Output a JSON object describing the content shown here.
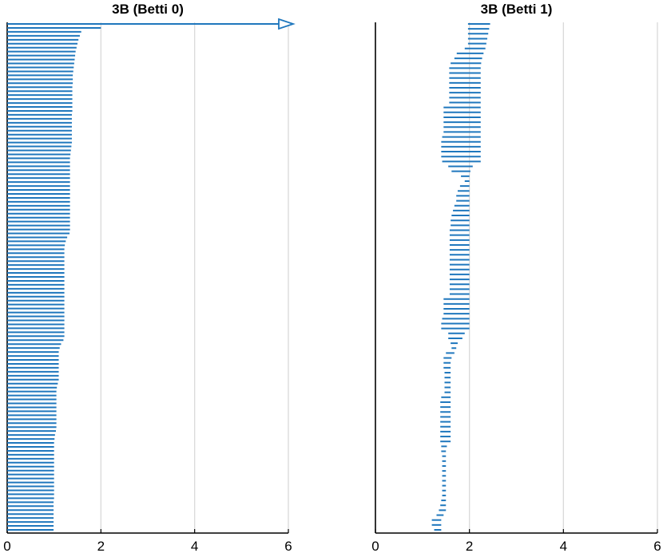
{
  "chart_data": [
    {
      "type": "barcode",
      "title": "3B (Betti 0)",
      "xlim": [
        0,
        6
      ],
      "xticks": [
        "0",
        "2",
        "4",
        "6"
      ],
      "grid": "x",
      "color": "#1f77bd",
      "infinite_bar": {
        "birth": 0,
        "arrow": true
      },
      "bars": [
        [
          0,
          2.0
        ],
        [
          0,
          1.58
        ],
        [
          0,
          1.55
        ],
        [
          0,
          1.52
        ],
        [
          0,
          1.5
        ],
        [
          0,
          1.48
        ],
        [
          0,
          1.46
        ],
        [
          0,
          1.45
        ],
        [
          0,
          1.44
        ],
        [
          0,
          1.43
        ],
        [
          0,
          1.42
        ],
        [
          0,
          1.41
        ],
        [
          0,
          1.4
        ],
        [
          0,
          1.4
        ],
        [
          0,
          1.4
        ],
        [
          0,
          1.39
        ],
        [
          0,
          1.39
        ],
        [
          0,
          1.39
        ],
        [
          0,
          1.39
        ],
        [
          0,
          1.39
        ],
        [
          0,
          1.39
        ],
        [
          0,
          1.39
        ],
        [
          0,
          1.38
        ],
        [
          0,
          1.38
        ],
        [
          0,
          1.38
        ],
        [
          0,
          1.38
        ],
        [
          0,
          1.38
        ],
        [
          0,
          1.38
        ],
        [
          0,
          1.38
        ],
        [
          0,
          1.38
        ],
        [
          0,
          1.37
        ],
        [
          0,
          1.36
        ],
        [
          0,
          1.35
        ],
        [
          0,
          1.34
        ],
        [
          0,
          1.34
        ],
        [
          0,
          1.34
        ],
        [
          0,
          1.34
        ],
        [
          0,
          1.34
        ],
        [
          0,
          1.34
        ],
        [
          0,
          1.34
        ],
        [
          0,
          1.34
        ],
        [
          0,
          1.34
        ],
        [
          0,
          1.34
        ],
        [
          0,
          1.34
        ],
        [
          0,
          1.34
        ],
        [
          0,
          1.34
        ],
        [
          0,
          1.34
        ],
        [
          0,
          1.34
        ],
        [
          0,
          1.34
        ],
        [
          0,
          1.34
        ],
        [
          0,
          1.34
        ],
        [
          0,
          1.34
        ],
        [
          0,
          1.33
        ],
        [
          0,
          1.28
        ],
        [
          0,
          1.25
        ],
        [
          0,
          1.23
        ],
        [
          0,
          1.22
        ],
        [
          0,
          1.22
        ],
        [
          0,
          1.22
        ],
        [
          0,
          1.22
        ],
        [
          0,
          1.22
        ],
        [
          0,
          1.22
        ],
        [
          0,
          1.22
        ],
        [
          0,
          1.22
        ],
        [
          0,
          1.22
        ],
        [
          0,
          1.22
        ],
        [
          0,
          1.22
        ],
        [
          0,
          1.22
        ],
        [
          0,
          1.22
        ],
        [
          0,
          1.22
        ],
        [
          0,
          1.22
        ],
        [
          0,
          1.22
        ],
        [
          0,
          1.22
        ],
        [
          0,
          1.22
        ],
        [
          0,
          1.22
        ],
        [
          0,
          1.22
        ],
        [
          0,
          1.22
        ],
        [
          0,
          1.22
        ],
        [
          0,
          1.22
        ],
        [
          0,
          1.2
        ],
        [
          0,
          1.15
        ],
        [
          0,
          1.12
        ],
        [
          0,
          1.1
        ],
        [
          0,
          1.1
        ],
        [
          0,
          1.1
        ],
        [
          0,
          1.1
        ],
        [
          0,
          1.1
        ],
        [
          0,
          1.1
        ],
        [
          0,
          1.1
        ],
        [
          0,
          1.1
        ],
        [
          0,
          1.08
        ],
        [
          0,
          1.06
        ],
        [
          0,
          1.05
        ],
        [
          0,
          1.05
        ],
        [
          0,
          1.05
        ],
        [
          0,
          1.05
        ],
        [
          0,
          1.05
        ],
        [
          0,
          1.05
        ],
        [
          0,
          1.05
        ],
        [
          0,
          1.05
        ],
        [
          0,
          1.05
        ],
        [
          0,
          1.05
        ],
        [
          0,
          1.04
        ],
        [
          0,
          1.02
        ],
        [
          0,
          1.01
        ],
        [
          0,
          1.0
        ],
        [
          0,
          1.0
        ],
        [
          0,
          1.0
        ],
        [
          0,
          1.0
        ],
        [
          0,
          1.0
        ],
        [
          0,
          1.0
        ],
        [
          0,
          1.0
        ],
        [
          0,
          1.0
        ],
        [
          0,
          1.0
        ],
        [
          0,
          1.0
        ],
        [
          0,
          1.0
        ],
        [
          0,
          1.0
        ],
        [
          0,
          1.0
        ],
        [
          0,
          1.0
        ],
        [
          0,
          1.0
        ],
        [
          0,
          0.99
        ],
        [
          0,
          0.99
        ],
        [
          0,
          0.99
        ],
        [
          0,
          0.99
        ],
        [
          0,
          0.99
        ],
        [
          0,
          0.99
        ],
        [
          0,
          0.99
        ],
        [
          0,
          0.99
        ]
      ]
    },
    {
      "type": "barcode",
      "title": "3B (Betti 1)",
      "xlim": [
        0,
        6
      ],
      "xticks": [
        "0",
        "2",
        "4",
        "6"
      ],
      "grid": "x",
      "color": "#1f77bd",
      "bars": [
        [
          1.97,
          2.44
        ],
        [
          1.97,
          2.42
        ],
        [
          1.97,
          2.4
        ],
        [
          1.97,
          2.38
        ],
        [
          1.97,
          2.36
        ],
        [
          1.9,
          2.34
        ],
        [
          1.73,
          2.3
        ],
        [
          1.68,
          2.27
        ],
        [
          1.6,
          2.25
        ],
        [
          1.57,
          2.24
        ],
        [
          1.57,
          2.24
        ],
        [
          1.57,
          2.24
        ],
        [
          1.57,
          2.24
        ],
        [
          1.57,
          2.24
        ],
        [
          1.57,
          2.24
        ],
        [
          1.57,
          2.24
        ],
        [
          1.57,
          2.24
        ],
        [
          1.45,
          2.24
        ],
        [
          1.45,
          2.24
        ],
        [
          1.45,
          2.24
        ],
        [
          1.45,
          2.24
        ],
        [
          1.45,
          2.24
        ],
        [
          1.45,
          2.24
        ],
        [
          1.42,
          2.24
        ],
        [
          1.4,
          2.24
        ],
        [
          1.4,
          2.24
        ],
        [
          1.4,
          2.24
        ],
        [
          1.4,
          2.24
        ],
        [
          1.42,
          2.24
        ],
        [
          1.55,
          2.07
        ],
        [
          1.62,
          2.02
        ],
        [
          1.82,
          2.0
        ],
        [
          1.9,
          2.0
        ],
        [
          1.8,
          2.0
        ],
        [
          1.75,
          2.0
        ],
        [
          1.72,
          2.0
        ],
        [
          1.72,
          2.0
        ],
        [
          1.68,
          2.0
        ],
        [
          1.65,
          2.0
        ],
        [
          1.62,
          2.0
        ],
        [
          1.6,
          2.0
        ],
        [
          1.6,
          2.0
        ],
        [
          1.58,
          2.0
        ],
        [
          1.58,
          2.0
        ],
        [
          1.58,
          2.0
        ],
        [
          1.58,
          2.0
        ],
        [
          1.58,
          2.0
        ],
        [
          1.58,
          2.0
        ],
        [
          1.58,
          2.0
        ],
        [
          1.58,
          2.0
        ],
        [
          1.58,
          2.0
        ],
        [
          1.58,
          2.0
        ],
        [
          1.58,
          2.0
        ],
        [
          1.58,
          2.0
        ],
        [
          1.58,
          2.0
        ],
        [
          1.58,
          2.0
        ],
        [
          1.45,
          2.0
        ],
        [
          1.45,
          2.0
        ],
        [
          1.45,
          2.0
        ],
        [
          1.45,
          2.0
        ],
        [
          1.42,
          2.0
        ],
        [
          1.4,
          2.0
        ],
        [
          1.4,
          2.0
        ],
        [
          1.55,
          1.9
        ],
        [
          1.55,
          1.85
        ],
        [
          1.6,
          1.75
        ],
        [
          1.62,
          1.72
        ],
        [
          1.5,
          1.68
        ],
        [
          1.45,
          1.62
        ],
        [
          1.45,
          1.6
        ],
        [
          1.45,
          1.6
        ],
        [
          1.47,
          1.6
        ],
        [
          1.47,
          1.6
        ],
        [
          1.47,
          1.6
        ],
        [
          1.47,
          1.6
        ],
        [
          1.47,
          1.6
        ],
        [
          1.4,
          1.6
        ],
        [
          1.38,
          1.6
        ],
        [
          1.38,
          1.6
        ],
        [
          1.38,
          1.6
        ],
        [
          1.38,
          1.6
        ],
        [
          1.38,
          1.6
        ],
        [
          1.38,
          1.6
        ],
        [
          1.38,
          1.6
        ],
        [
          1.38,
          1.6
        ],
        [
          1.38,
          1.6
        ],
        [
          1.4,
          1.52
        ],
        [
          1.4,
          1.5
        ],
        [
          1.42,
          1.5
        ],
        [
          1.42,
          1.5
        ],
        [
          1.42,
          1.5
        ],
        [
          1.42,
          1.5
        ],
        [
          1.42,
          1.5
        ],
        [
          1.42,
          1.5
        ],
        [
          1.42,
          1.5
        ],
        [
          1.42,
          1.5
        ],
        [
          1.42,
          1.5
        ],
        [
          1.4,
          1.5
        ],
        [
          1.38,
          1.5
        ],
        [
          1.35,
          1.5
        ],
        [
          1.3,
          1.45
        ],
        [
          1.2,
          1.4
        ],
        [
          1.2,
          1.4
        ],
        [
          1.25,
          1.4
        ]
      ]
    }
  ]
}
